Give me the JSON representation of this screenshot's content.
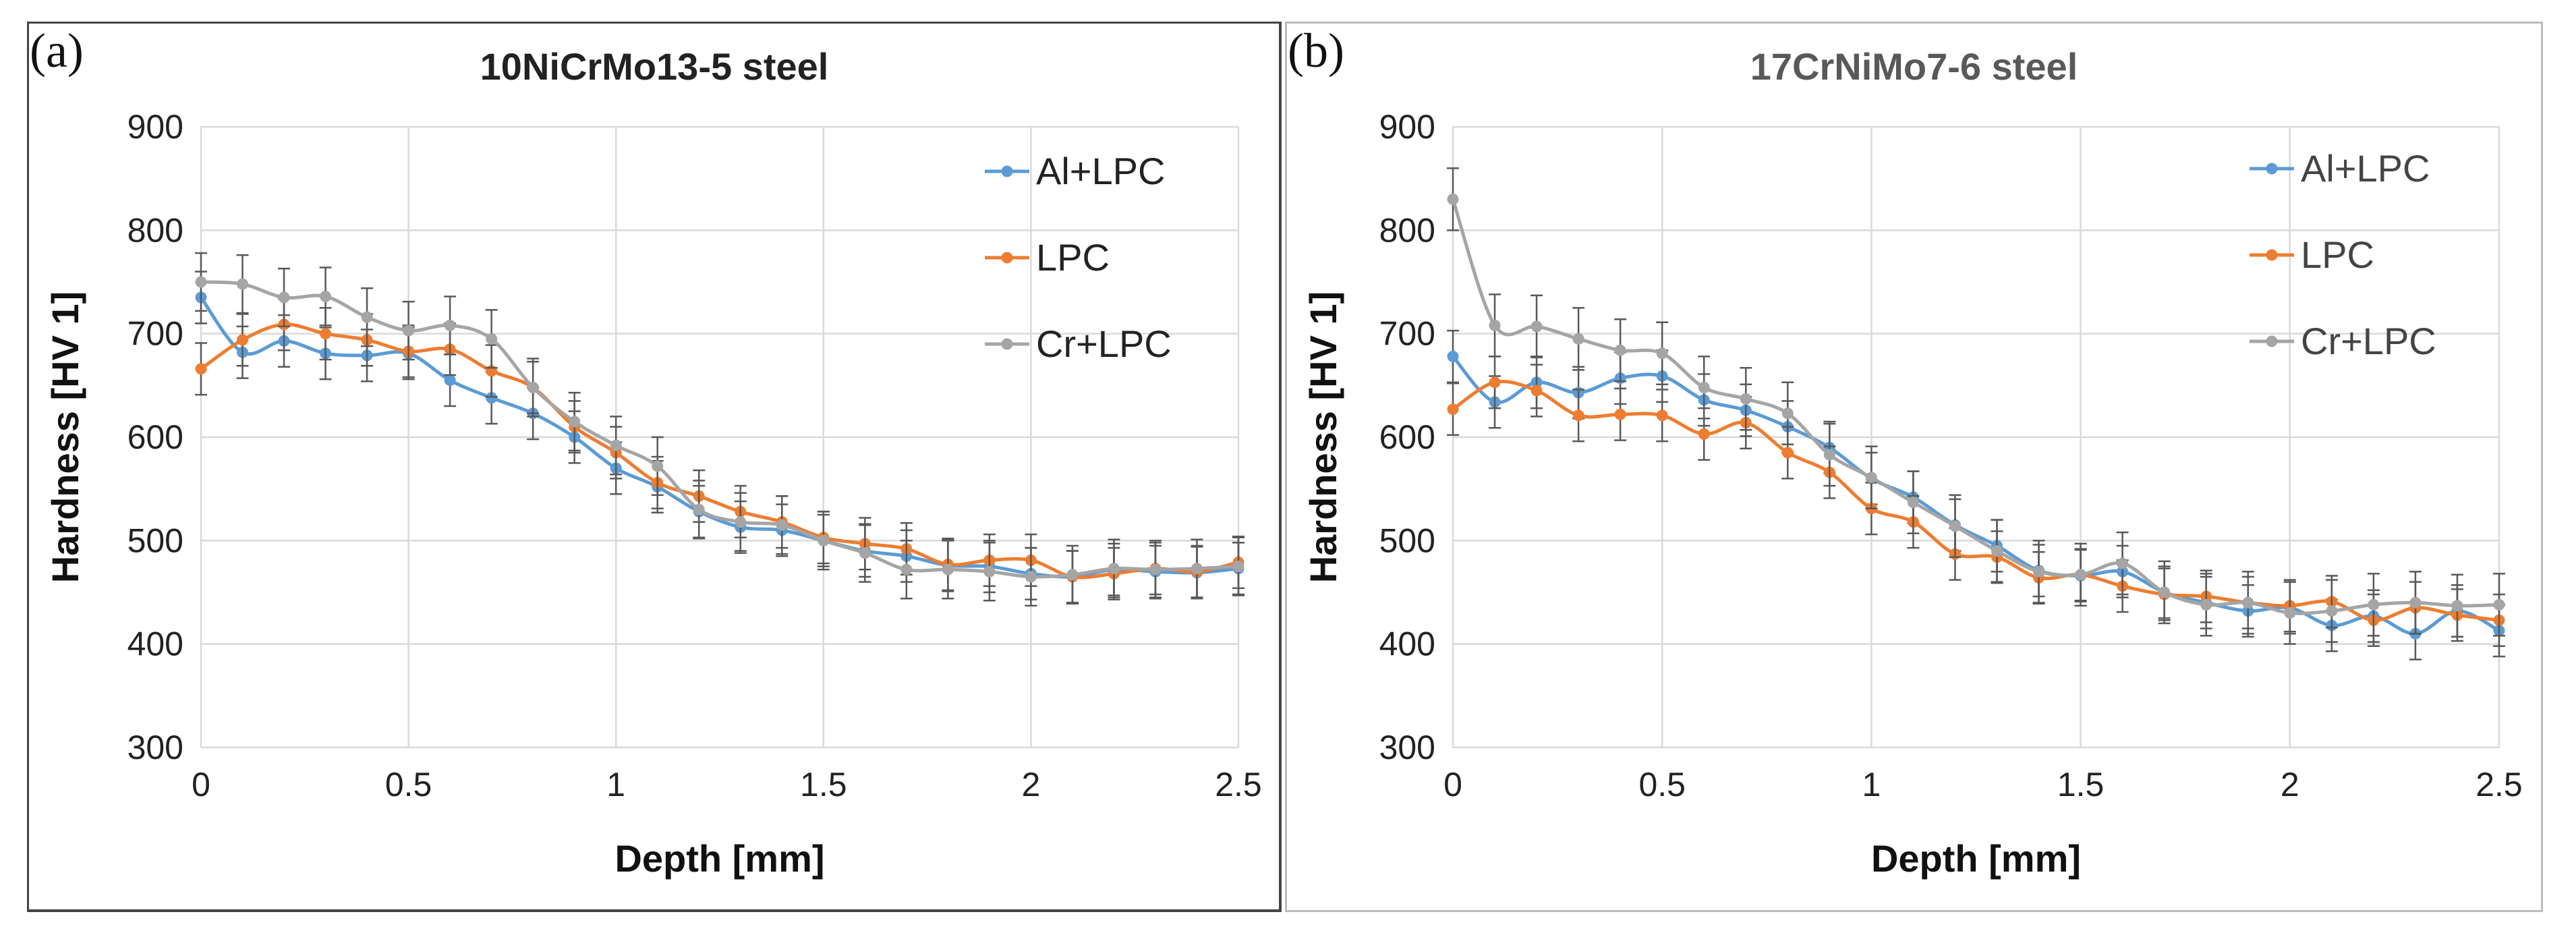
{
  "colors": {
    "al": "#5b9bd5",
    "lpc": "#ed7d31",
    "cr": "#a5a5a5",
    "grid": "#d9d9d9",
    "err": "#595959"
  },
  "chart_data": [
    {
      "type": "line",
      "panel_label": "(a)",
      "title": "10NiCrMo13-5  steel",
      "xlabel": "Depth [mm]",
      "ylabel": "Hardness [HV 1]",
      "xlim": [
        0,
        2.5
      ],
      "ylim": [
        300,
        900
      ],
      "xticks": [
        "0",
        "0.5",
        "1",
        "1.5",
        "2",
        "2.5"
      ],
      "yticks": [
        "300",
        "400",
        "500",
        "600",
        "700",
        "800",
        "900"
      ],
      "grid": true,
      "legend_position": "top-right",
      "x": [
        0,
        0.1,
        0.2,
        0.3,
        0.4,
        0.5,
        0.6,
        0.7,
        0.8,
        0.9,
        1.0,
        1.1,
        1.2,
        1.3,
        1.4,
        1.5,
        1.6,
        1.7,
        1.8,
        1.9,
        2.0,
        2.1,
        2.2,
        2.3,
        2.4,
        2.5
      ],
      "series": [
        {
          "name": "Al+LPC",
          "color": "#5b9bd5",
          "values": [
            735,
            682,
            693,
            681,
            679,
            681,
            655,
            638,
            623,
            600,
            570,
            552,
            528,
            513,
            510,
            500,
            490,
            485,
            476,
            475,
            468,
            465,
            472,
            470,
            469,
            473
          ],
          "errors": [
            25,
            25,
            25,
            25,
            25,
            25,
            25,
            25,
            25,
            25,
            25,
            25,
            25,
            25,
            25,
            25,
            25,
            25,
            25,
            25,
            25,
            25,
            25,
            25,
            25,
            25
          ]
        },
        {
          "name": "LPC",
          "color": "#ed7d31",
          "values": [
            666,
            694,
            709,
            700,
            694,
            683,
            685,
            664,
            648,
            610,
            585,
            556,
            543,
            528,
            518,
            503,
            497,
            492,
            477,
            481,
            481,
            465,
            468,
            473,
            470,
            479
          ],
          "errors": [
            25,
            25,
            25,
            25,
            25,
            25,
            25,
            25,
            25,
            25,
            25,
            25,
            25,
            25,
            25,
            25,
            25,
            25,
            25,
            25,
            25,
            25,
            25,
            25,
            25,
            25
          ]
        },
        {
          "name": "Cr+LPC",
          "color": "#a5a5a5",
          "values": [
            750,
            748,
            735,
            736,
            716,
            703,
            708,
            695,
            648,
            615,
            592,
            572,
            530,
            518,
            515,
            500,
            488,
            472,
            472,
            470,
            465,
            467,
            473,
            472,
            473,
            475
          ],
          "errors": [
            28,
            28,
            28,
            28,
            28,
            28,
            28,
            28,
            28,
            28,
            28,
            28,
            28,
            28,
            28,
            28,
            28,
            28,
            28,
            28,
            28,
            28,
            28,
            28,
            28,
            28
          ]
        }
      ]
    },
    {
      "type": "line",
      "panel_label": "(b)",
      "title": "17CrNiMo7-6 steel",
      "xlabel": "Depth [mm]",
      "ylabel": "Hardness [HV 1]",
      "xlim": [
        0,
        2.5
      ],
      "ylim": [
        300,
        900
      ],
      "xticks": [
        "0",
        "0.5",
        "1",
        "1.5",
        "2",
        "2.5"
      ],
      "yticks": [
        "300",
        "400",
        "500",
        "600",
        "700",
        "800",
        "900"
      ],
      "grid": true,
      "legend_position": "top-right",
      "x": [
        0,
        0.1,
        0.2,
        0.3,
        0.4,
        0.5,
        0.6,
        0.7,
        0.8,
        0.9,
        1.0,
        1.1,
        1.2,
        1.3,
        1.4,
        1.5,
        1.6,
        1.7,
        1.8,
        1.9,
        2.0,
        2.1,
        2.2,
        2.3,
        2.4,
        2.5
      ],
      "series": [
        {
          "name": "Al+LPC",
          "color": "#5b9bd5",
          "values": [
            678,
            634,
            653,
            643,
            657,
            659,
            636,
            626,
            610,
            590,
            560,
            542,
            515,
            495,
            471,
            466,
            470,
            450,
            440,
            432,
            435,
            418,
            427,
            410,
            432,
            413
          ],
          "errors": [
            25,
            25,
            25,
            25,
            25,
            25,
            25,
            25,
            25,
            25,
            25,
            25,
            25,
            25,
            25,
            25,
            25,
            25,
            25,
            25,
            25,
            25,
            25,
            25,
            25,
            25
          ]
        },
        {
          "name": "LPC",
          "color": "#ed7d31",
          "values": [
            627,
            653,
            645,
            621,
            622,
            621,
            603,
            614,
            585,
            566,
            531,
            518,
            487,
            484,
            464,
            467,
            456,
            448,
            446,
            440,
            437,
            441,
            423,
            435,
            428,
            423
          ],
          "errors": [
            25,
            25,
            25,
            25,
            25,
            25,
            25,
            25,
            25,
            25,
            25,
            25,
            25,
            25,
            25,
            25,
            25,
            25,
            25,
            25,
            25,
            25,
            25,
            25,
            25,
            25
          ]
        },
        {
          "name": "Cr+LPC",
          "color": "#a5a5a5",
          "values": [
            830,
            708,
            707,
            695,
            684,
            681,
            648,
            637,
            623,
            583,
            561,
            537,
            514,
            490,
            470,
            467,
            478,
            450,
            438,
            440,
            430,
            432,
            438,
            440,
            437,
            438
          ],
          "errors": [
            30,
            30,
            30,
            30,
            30,
            30,
            30,
            30,
            30,
            30,
            30,
            30,
            30,
            30,
            30,
            30,
            30,
            30,
            30,
            30,
            30,
            30,
            30,
            30,
            30,
            30
          ]
        }
      ]
    }
  ]
}
